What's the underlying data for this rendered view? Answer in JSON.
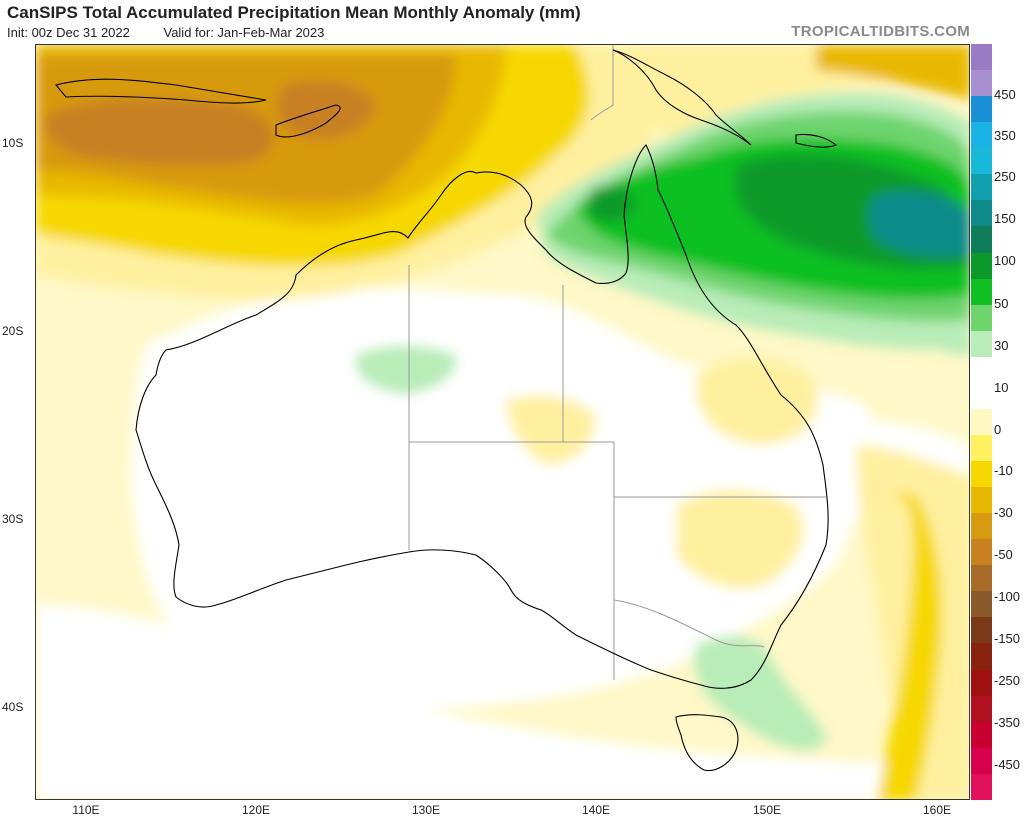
{
  "header": {
    "title": "CanSIPS Total Accumulated Precipitation Mean Monthly Anomaly (mm)",
    "init": "Init: 00z Dec 31 2022",
    "valid": "Valid for: Jan-Feb-Mar 2023",
    "brand": "TROPICALTIDBITS.COM"
  },
  "map": {
    "lat_labels": [
      "10S",
      "20S",
      "30S",
      "40S"
    ],
    "lon_labels": [
      "110E",
      "120E",
      "130E",
      "140E",
      "150E",
      "160E"
    ]
  },
  "legend": {
    "colors": [
      "#9a7bc4",
      "#a88fd1",
      "#1a8fd6",
      "#1ab3e6",
      "#18b8d8",
      "#10a0b0",
      "#0e8a8a",
      "#0f7d5a",
      "#0a9a2a",
      "#10c020",
      "#6ed46e",
      "#b8ecb8",
      "#ffffff",
      "#ffffff",
      "#fff8c0",
      "#fff060",
      "#f6d800",
      "#e8b800",
      "#d89a10",
      "#c88020",
      "#a86a28",
      "#8a5a2a",
      "#7a3a1a",
      "#8a2210",
      "#a01010",
      "#b01020",
      "#c80030",
      "#d8004a",
      "#e0105a"
    ],
    "labels": [
      "450",
      "350",
      "250",
      "150",
      "100",
      "50",
      "30",
      "10",
      "0",
      "-10",
      "-30",
      "-50",
      "-100",
      "-150",
      "-250",
      "-350",
      "-450"
    ]
  }
}
